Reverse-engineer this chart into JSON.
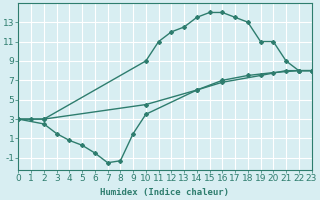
{
  "line1_x": [
    0,
    1,
    2,
    10,
    11,
    12,
    13,
    14,
    15,
    16,
    17,
    18,
    19,
    20,
    21,
    22,
    23
  ],
  "line1_y": [
    3,
    3,
    3,
    9,
    11,
    12,
    12.5,
    13.5,
    14,
    14,
    13.5,
    13,
    11,
    11,
    9,
    8,
    8
  ],
  "line2_x": [
    0,
    2,
    10,
    14,
    16,
    18,
    20,
    22,
    23
  ],
  "line2_y": [
    3,
    3,
    4.5,
    6,
    7,
    7.5,
    7.8,
    8,
    8
  ],
  "line3_x": [
    0,
    2,
    3,
    4,
    5,
    6,
    7,
    8,
    9,
    10,
    14,
    16,
    19,
    21,
    22,
    23
  ],
  "line3_y": [
    3,
    2.5,
    1.5,
    0.8,
    0.3,
    -0.5,
    -1.5,
    -1.3,
    1.5,
    3.5,
    6,
    6.8,
    7.5,
    8,
    8,
    8
  ],
  "line_color": "#2e7d6e",
  "bg_color": "#d8eef2",
  "grid_color": "#ffffff",
  "grid_minor_color": "#e8c8c8",
  "xlabel": "Humidex (Indice chaleur)",
  "yticks": [
    -1,
    1,
    3,
    5,
    7,
    9,
    11,
    13
  ],
  "xticks": [
    0,
    1,
    2,
    3,
    4,
    5,
    6,
    7,
    8,
    9,
    10,
    11,
    12,
    13,
    14,
    15,
    16,
    17,
    18,
    19,
    20,
    21,
    22,
    23
  ],
  "xlim": [
    0,
    23
  ],
  "ylim": [
    -2.2,
    15
  ],
  "font_size": 6.5,
  "marker": "D",
  "markersize": 2.0,
  "linewidth": 1.0
}
